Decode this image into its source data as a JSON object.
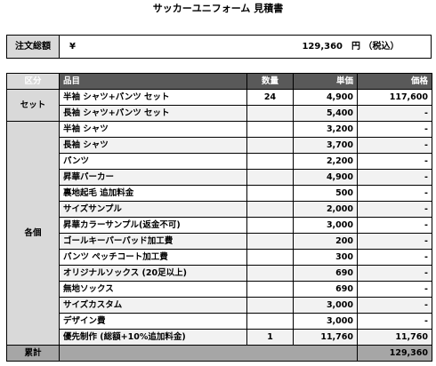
{
  "title": "サッカーユニフォーム 見積書",
  "total": {
    "label": "注文総額",
    "currency": "¥",
    "amount": "129,360",
    "unit": "円 （税込）"
  },
  "table": {
    "headers": {
      "category": "区分",
      "item": "品目",
      "qty": "数量",
      "unit_price": "単価",
      "price": "価格"
    },
    "set_label": "セット",
    "each_label": "各個",
    "set_rows": [
      {
        "item": "半袖 シャツ+パンツ セット",
        "qty": "24",
        "unit_price": "4,900",
        "price": "117,600"
      },
      {
        "item": "長袖 シャツ+パンツ セット",
        "qty": "",
        "unit_price": "5,400",
        "price": "-"
      }
    ],
    "each_rows": [
      {
        "item": "半袖 シャツ",
        "qty": "",
        "unit_price": "3,200",
        "price": "-"
      },
      {
        "item": "長袖 シャツ",
        "qty": "",
        "unit_price": "3,700",
        "price": "-"
      },
      {
        "item": "パンツ",
        "qty": "",
        "unit_price": "2,200",
        "price": "-"
      },
      {
        "item": "昇華パーカー",
        "qty": "",
        "unit_price": "4,900",
        "price": "-"
      },
      {
        "item": "裏地起毛 追加料金",
        "qty": "",
        "unit_price": "500",
        "price": "-"
      },
      {
        "item": "サイズサンプル",
        "qty": "",
        "unit_price": "2,000",
        "price": "-"
      },
      {
        "item": "昇華カラーサンプル(返金不可)",
        "qty": "",
        "unit_price": "3,000",
        "price": "-"
      },
      {
        "item": "ゴールキーパーパッド加工費",
        "qty": "",
        "unit_price": "200",
        "price": "-"
      },
      {
        "item": "パンツ ペッチコート加工費",
        "qty": "",
        "unit_price": "300",
        "price": "-"
      },
      {
        "item": "オリジナルソックス (20足以上)",
        "qty": "",
        "unit_price": "690",
        "price": "-"
      },
      {
        "item": "無地ソックス",
        "qty": "",
        "unit_price": "690",
        "price": "-"
      },
      {
        "item": "サイズカスタム",
        "qty": "",
        "unit_price": "3,000",
        "price": "-"
      },
      {
        "item": "デザイン費",
        "qty": "",
        "unit_price": "3,000",
        "price": "-"
      },
      {
        "item": "優先制作 (総額+10%追加料金)",
        "qty": "1",
        "unit_price": "11,760",
        "price": "11,760"
      }
    ],
    "subtotal": {
      "label": "累計",
      "price": "129,360"
    }
  }
}
